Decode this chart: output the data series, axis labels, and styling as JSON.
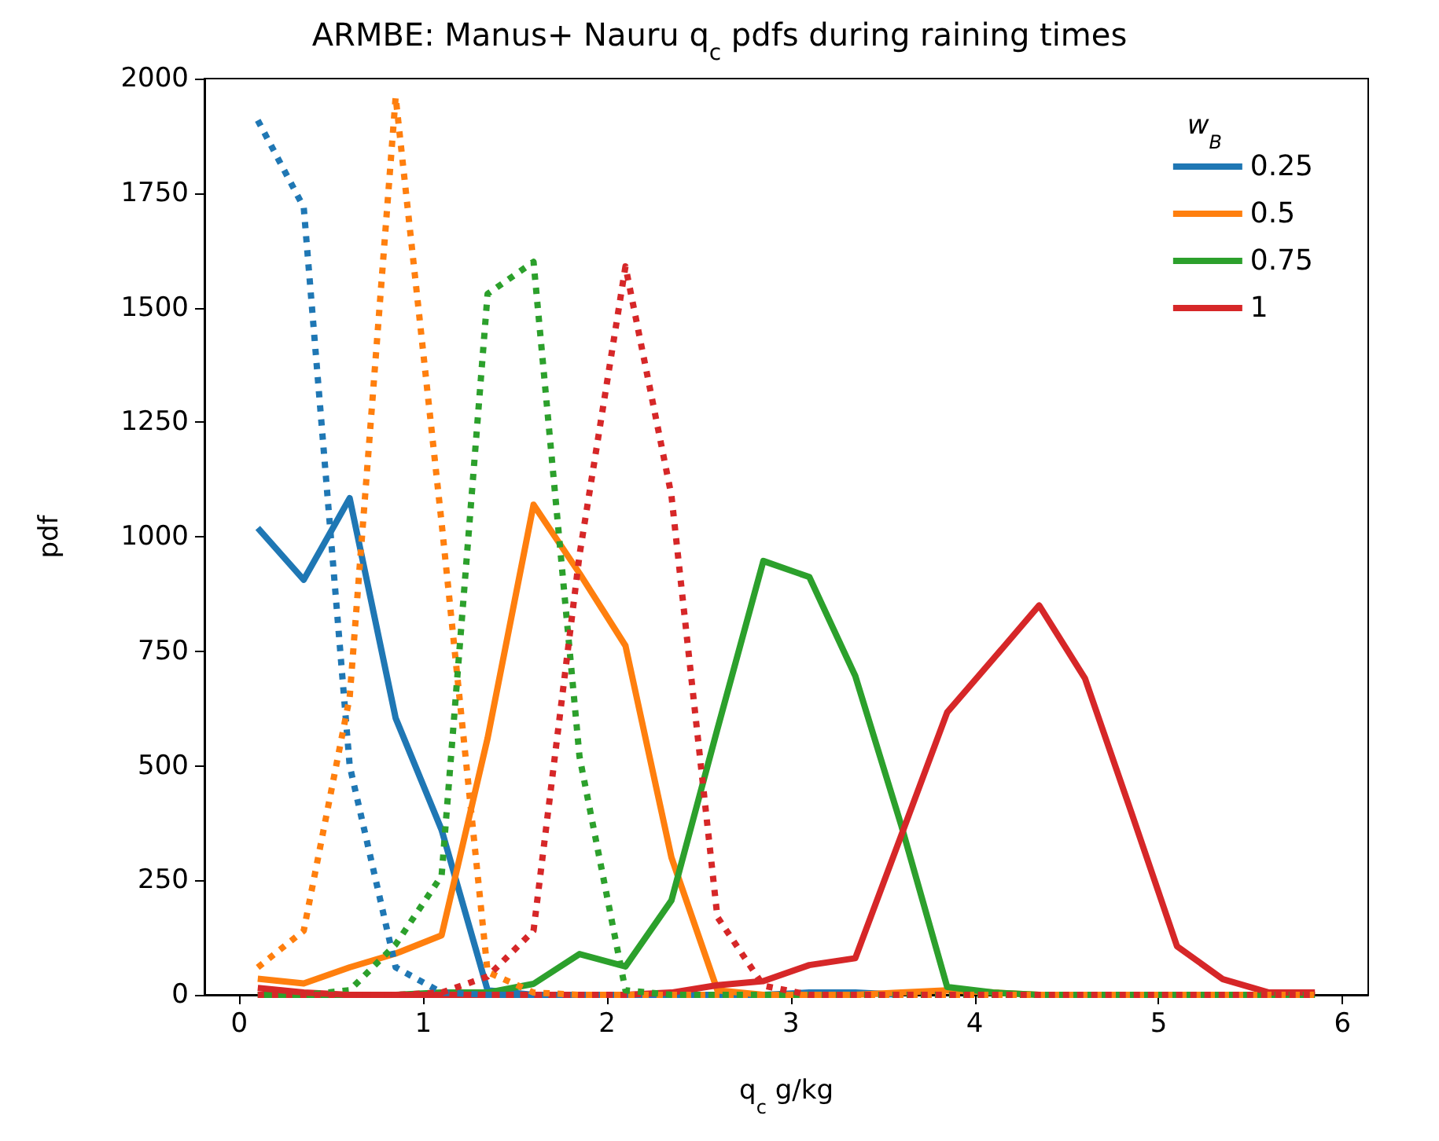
{
  "chart_data": {
    "type": "line",
    "title": "ARMBE: Manus+ Nauru q$_{c}$ pdfs during raining times",
    "xlabel": "q$_{c}$ g/kg",
    "ylabel": "pdf",
    "legend_title": "w$_{B}$",
    "legend": "top right",
    "grid": false,
    "marker": "none",
    "x": [
      0.1,
      0.35,
      0.6,
      0.85,
      1.1,
      1.35,
      1.6,
      1.85,
      2.1,
      2.35,
      2.6,
      2.85,
      3.1,
      3.35,
      3.6,
      3.85,
      4.1,
      4.35,
      4.6,
      4.85,
      5.1,
      5.35,
      5.6,
      5.85
    ],
    "xlim": [
      -0.19,
      6.14
    ],
    "xticks": [
      0,
      1,
      2,
      3,
      4,
      5,
      6
    ],
    "ylim": [
      0,
      2000
    ],
    "yticks": [
      0,
      250,
      500,
      750,
      1000,
      1250,
      1500,
      1750,
      2000
    ],
    "series": [
      {
        "name": "0.25",
        "color": "#1f77b4",
        "line_style": "solid",
        "values": [
          1019,
          906,
          1084,
          604,
          360,
          10,
          0,
          0,
          0,
          0,
          0,
          0,
          5,
          5,
          0,
          null,
          null,
          null,
          null,
          null,
          null,
          null,
          null,
          null
        ]
      },
      {
        "name": "0.5",
        "color": "#ff7f0e",
        "line_style": "solid",
        "values": [
          35,
          25,
          60,
          90,
          130,
          560,
          1070,
          920,
          762,
          300,
          10,
          0,
          0,
          0,
          5,
          10,
          5,
          0,
          0,
          0,
          0,
          0,
          0,
          0
        ]
      },
      {
        "name": "0.75",
        "color": "#2ca02c",
        "line_style": "solid",
        "values": [
          0,
          0,
          0,
          0,
          5,
          5,
          24,
          89,
          62,
          206,
          580,
          947,
          912,
          696,
          370,
          17,
          5,
          0,
          0,
          0,
          0,
          0,
          0,
          0
        ]
      },
      {
        "name": "1",
        "color": "#d62728",
        "line_style": "solid",
        "values": [
          15,
          5,
          0,
          0,
          0,
          0,
          0,
          0,
          0,
          5,
          21,
          30,
          65,
          80,
          348,
          617,
          733,
          850,
          690,
          400,
          106,
          34,
          5,
          5
        ]
      },
      {
        "color": "#1f77b4",
        "line_style": "dotted",
        "values": [
          1909,
          1719,
          500,
          60,
          5,
          0,
          0,
          0,
          0,
          0,
          0,
          0,
          0,
          0,
          0,
          0,
          null,
          null,
          null,
          null,
          null,
          null,
          null,
          null
        ]
      },
      {
        "color": "#ff7f0e",
        "line_style": "dotted",
        "values": [
          60,
          140,
          650,
          1960,
          1030,
          50,
          5,
          0,
          0,
          0,
          0,
          0,
          0,
          0,
          0,
          0,
          0,
          0,
          0,
          0,
          0,
          0,
          0,
          0
        ]
      },
      {
        "color": "#2ca02c",
        "line_style": "dotted",
        "values": [
          0,
          0,
          10,
          110,
          260,
          1530,
          1600,
          520,
          10,
          0,
          0,
          0,
          0,
          0,
          0,
          0,
          0,
          0,
          0,
          0,
          0,
          0,
          0,
          0
        ]
      },
      {
        "color": "#d62728",
        "line_style": "dotted",
        "values": [
          0,
          0,
          0,
          0,
          5,
          40,
          140,
          960,
          1590,
          1090,
          170,
          20,
          0,
          0,
          0,
          0,
          0,
          0,
          0,
          0,
          0,
          0,
          0,
          0
        ]
      }
    ]
  }
}
